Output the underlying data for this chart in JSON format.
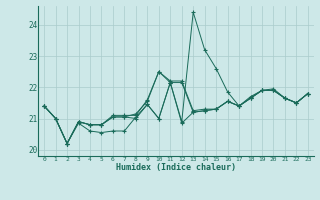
{
  "xlabel": "Humidex (Indice chaleur)",
  "ylabel": "",
  "bg_color": "#cde8e8",
  "grid_color": "#aacccc",
  "line_color": "#1a6b5a",
  "xlim": [
    -0.5,
    23.5
  ],
  "ylim": [
    19.8,
    24.6
  ],
  "yticks": [
    20,
    21,
    22,
    23,
    24
  ],
  "xticks": [
    0,
    1,
    2,
    3,
    4,
    5,
    6,
    7,
    8,
    9,
    10,
    11,
    12,
    13,
    14,
    15,
    16,
    17,
    18,
    19,
    20,
    21,
    22,
    23
  ],
  "series": [
    [
      21.4,
      21.0,
      20.2,
      20.9,
      20.8,
      20.8,
      21.1,
      21.1,
      21.1,
      21.6,
      22.5,
      22.15,
      22.15,
      21.2,
      21.25,
      21.3,
      21.55,
      21.4,
      21.7,
      21.9,
      21.95,
      21.65,
      21.5,
      21.8
    ],
    [
      21.4,
      21.0,
      20.2,
      20.85,
      20.6,
      20.55,
      20.6,
      20.6,
      21.05,
      21.45,
      21.0,
      22.15,
      20.9,
      24.4,
      23.2,
      22.6,
      21.85,
      21.4,
      21.65,
      21.9,
      21.9,
      21.65,
      21.5,
      21.8
    ],
    [
      21.4,
      21.0,
      20.2,
      20.9,
      20.8,
      20.8,
      21.05,
      21.05,
      21.15,
      21.55,
      22.5,
      22.2,
      22.2,
      21.25,
      21.3,
      21.3,
      21.55,
      21.4,
      21.65,
      21.9,
      21.9,
      21.65,
      21.5,
      21.8
    ],
    [
      21.4,
      21.0,
      20.2,
      20.9,
      20.8,
      20.8,
      21.05,
      21.05,
      21.0,
      21.45,
      21.0,
      22.15,
      20.85,
      21.2,
      21.25,
      21.3,
      21.55,
      21.4,
      21.65,
      21.9,
      21.9,
      21.65,
      21.5,
      21.8
    ]
  ]
}
